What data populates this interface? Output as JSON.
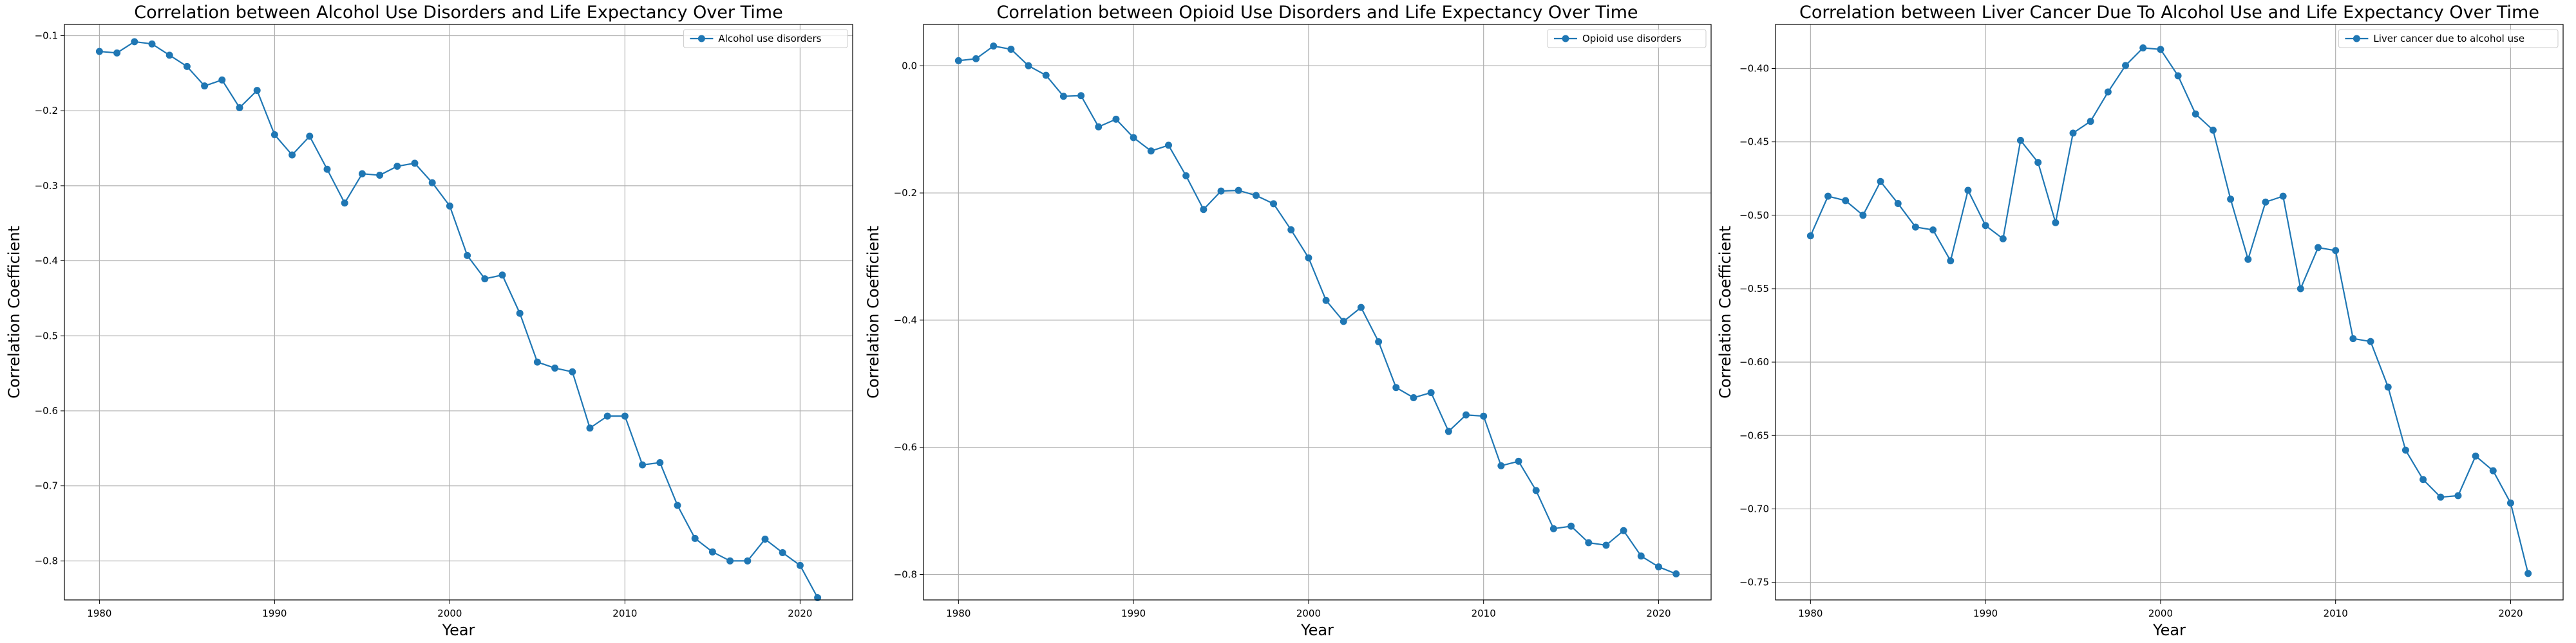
{
  "chart_data": [
    {
      "type": "line",
      "title": "Correlation between Alcohol Use Disorders and Life Expectancy Over Time",
      "xlabel": "Year",
      "ylabel": "Correlation Coefficient",
      "xlim": [
        1978,
        2023
      ],
      "ylim": [
        -0.852,
        -0.085
      ],
      "xticks": [
        1980,
        1990,
        2000,
        2010,
        2020
      ],
      "yticks": [
        -0.8,
        -0.7,
        -0.6,
        -0.5,
        -0.4,
        -0.3,
        -0.2,
        -0.1
      ],
      "ytick_labels": [
        "−0.8",
        "−0.7",
        "−0.6",
        "−0.5",
        "−0.4",
        "−0.3",
        "−0.2",
        "−0.1"
      ],
      "grid": true,
      "legend_position": "top-right",
      "series": [
        {
          "name": "Alcohol use disorders",
          "color": "#1f77b4",
          "x": [
            1980,
            1981,
            1982,
            1983,
            1984,
            1985,
            1986,
            1987,
            1988,
            1989,
            1990,
            1991,
            1992,
            1993,
            1994,
            1995,
            1996,
            1997,
            1998,
            1999,
            2000,
            2001,
            2002,
            2003,
            2004,
            2005,
            2006,
            2007,
            2008,
            2009,
            2010,
            2011,
            2012,
            2013,
            2014,
            2015,
            2016,
            2017,
            2018,
            2019,
            2020,
            2021
          ],
          "y": [
            -0.121,
            -0.123,
            -0.108,
            -0.111,
            -0.126,
            -0.141,
            -0.167,
            -0.159,
            -0.196,
            -0.173,
            -0.232,
            -0.259,
            -0.234,
            -0.278,
            -0.323,
            -0.284,
            -0.286,
            -0.274,
            -0.27,
            -0.296,
            -0.327,
            -0.393,
            -0.424,
            -0.419,
            -0.47,
            -0.535,
            -0.543,
            -0.548,
            -0.623,
            -0.607,
            -0.607,
            -0.672,
            -0.669,
            -0.726,
            -0.77,
            -0.788,
            -0.8,
            -0.8,
            -0.771,
            -0.789,
            -0.806,
            -0.849
          ]
        }
      ]
    },
    {
      "type": "line",
      "title": "Correlation between Opioid Use Disorders and Life Expectancy Over Time",
      "xlabel": "Year",
      "ylabel": "Correlation Coefficient",
      "xlim": [
        1978,
        2023
      ],
      "ylim": [
        -0.84,
        0.065
      ],
      "xticks": [
        1980,
        1990,
        2000,
        2010,
        2020
      ],
      "yticks": [
        -0.8,
        -0.6,
        -0.4,
        -0.2,
        0.0
      ],
      "ytick_labels": [
        "−0.8",
        "−0.6",
        "−0.4",
        "−0.2",
        "0.0"
      ],
      "grid": true,
      "legend_position": "top-right",
      "series": [
        {
          "name": "Opioid use disorders",
          "color": "#1f77b4",
          "x": [
            1980,
            1981,
            1982,
            1983,
            1984,
            1985,
            1986,
            1987,
            1988,
            1989,
            1990,
            1991,
            1992,
            1993,
            1994,
            1995,
            1996,
            1997,
            1998,
            1999,
            2000,
            2001,
            2002,
            2003,
            2004,
            2005,
            2006,
            2007,
            2008,
            2009,
            2010,
            2011,
            2012,
            2013,
            2014,
            2015,
            2016,
            2017,
            2018,
            2019,
            2020,
            2021
          ],
          "y": [
            0.008,
            0.011,
            0.031,
            0.026,
            0.0,
            -0.015,
            -0.048,
            -0.047,
            -0.096,
            -0.084,
            -0.113,
            -0.134,
            -0.125,
            -0.173,
            -0.226,
            -0.197,
            -0.196,
            -0.204,
            -0.217,
            -0.258,
            -0.302,
            -0.369,
            -0.402,
            -0.38,
            -0.434,
            -0.506,
            -0.522,
            -0.514,
            -0.575,
            -0.549,
            -0.551,
            -0.629,
            -0.622,
            -0.668,
            -0.728,
            -0.724,
            -0.75,
            -0.754,
            -0.731,
            -0.771,
            -0.788,
            -0.799
          ]
        }
      ]
    },
    {
      "type": "line",
      "title": "Correlation between Liver Cancer Due To Alcohol Use and Life Expectancy Over Time",
      "xlabel": "Year",
      "ylabel": "Correlation Coefficient",
      "xlim": [
        1978,
        2023
      ],
      "ylim": [
        -0.762,
        -0.37
      ],
      "xticks": [
        1980,
        1990,
        2000,
        2010,
        2020
      ],
      "yticks": [
        -0.75,
        -0.7,
        -0.65,
        -0.6,
        -0.55,
        -0.5,
        -0.45,
        -0.4
      ],
      "ytick_labels": [
        "−0.75",
        "−0.70",
        "−0.65",
        "−0.60",
        "−0.55",
        "−0.50",
        "−0.45",
        "−0.40"
      ],
      "grid": true,
      "legend_position": "top-right",
      "series": [
        {
          "name": "Liver cancer due to alcohol use",
          "color": "#1f77b4",
          "x": [
            1980,
            1981,
            1982,
            1983,
            1984,
            1985,
            1986,
            1987,
            1988,
            1989,
            1990,
            1991,
            1992,
            1993,
            1994,
            1995,
            1996,
            1997,
            1998,
            1999,
            2000,
            2001,
            2002,
            2003,
            2004,
            2005,
            2006,
            2007,
            2008,
            2009,
            2010,
            2011,
            2012,
            2013,
            2014,
            2015,
            2016,
            2017,
            2018,
            2019,
            2020,
            2021
          ],
          "y": [
            -0.514,
            -0.487,
            -0.49,
            -0.5,
            -0.477,
            -0.492,
            -0.508,
            -0.51,
            -0.531,
            -0.483,
            -0.507,
            -0.516,
            -0.449,
            -0.464,
            -0.505,
            -0.444,
            -0.436,
            -0.416,
            -0.398,
            -0.386,
            -0.387,
            -0.405,
            -0.431,
            -0.442,
            -0.489,
            -0.53,
            -0.491,
            -0.487,
            -0.55,
            -0.522,
            -0.524,
            -0.584,
            -0.586,
            -0.617,
            -0.66,
            -0.68,
            -0.692,
            -0.691,
            -0.664,
            -0.674,
            -0.696,
            -0.744
          ]
        }
      ]
    }
  ]
}
